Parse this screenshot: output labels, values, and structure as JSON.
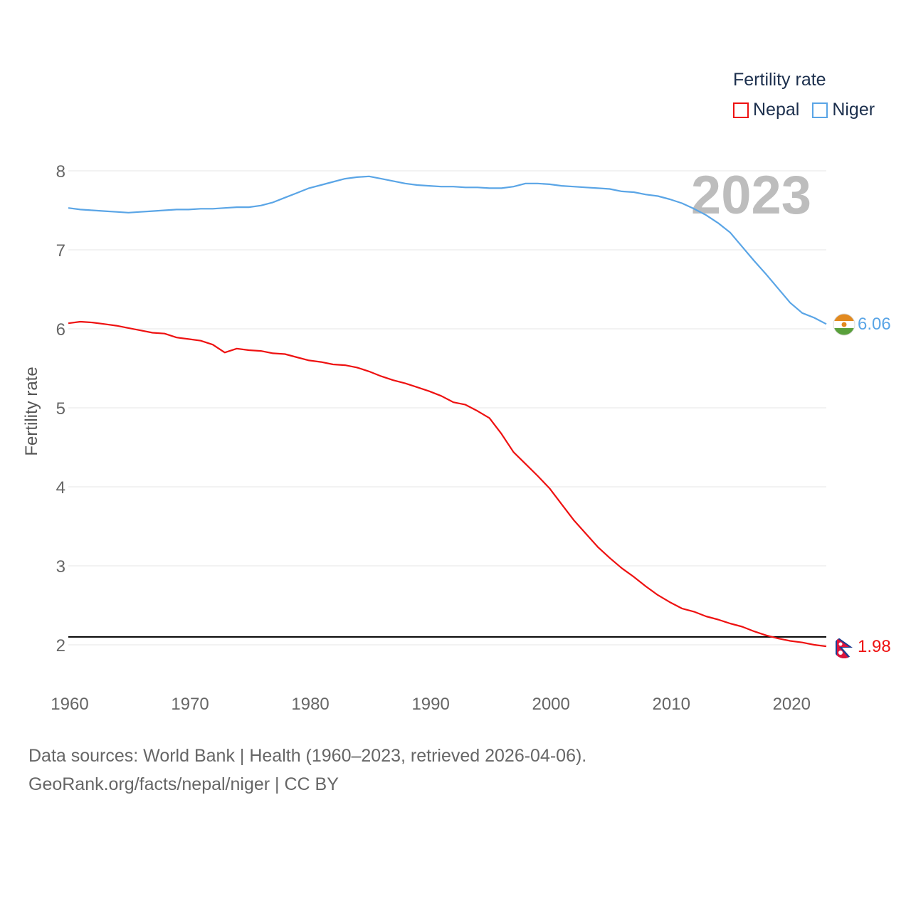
{
  "legend": {
    "title": "Fertility rate",
    "items": [
      {
        "name": "Nepal",
        "color": "#ee1111"
      },
      {
        "name": "Niger",
        "color": "#5aa5e6"
      }
    ]
  },
  "footer": {
    "line1": "Data sources: World Bank | Health (1960–2023, retrieved 2026-04-06).",
    "line2": "GeoRank.org/facts/nepal/niger | CC BY"
  },
  "chart_data": {
    "type": "line",
    "ylabel": "Fertility rate",
    "xlabel": "",
    "year_watermark": "2023",
    "xlim": [
      1960,
      2023
    ],
    "ylim": [
      1.5,
      8.5
    ],
    "xticks": [
      1960,
      1970,
      1980,
      1990,
      2000,
      2010,
      2020
    ],
    "yticks": [
      2,
      3,
      4,
      5,
      6,
      7,
      8
    ],
    "grid": true,
    "reference_line": {
      "y": 2.1,
      "color": "#000000"
    },
    "x": [
      1960,
      1961,
      1962,
      1963,
      1964,
      1965,
      1966,
      1967,
      1968,
      1969,
      1970,
      1971,
      1972,
      1973,
      1974,
      1975,
      1976,
      1977,
      1978,
      1979,
      1980,
      1981,
      1982,
      1983,
      1984,
      1985,
      1986,
      1987,
      1988,
      1989,
      1990,
      1991,
      1992,
      1993,
      1994,
      1995,
      1996,
      1997,
      1998,
      1999,
      2000,
      2001,
      2002,
      2003,
      2004,
      2005,
      2006,
      2007,
      2008,
      2009,
      2010,
      2011,
      2012,
      2013,
      2014,
      2015,
      2016,
      2017,
      2018,
      2019,
      2020,
      2021,
      2022,
      2023
    ],
    "series": [
      {
        "name": "Nepal",
        "color": "#ee1111",
        "end_label": "1.98",
        "values": [
          6.07,
          6.09,
          6.08,
          6.06,
          6.04,
          6.01,
          5.98,
          5.95,
          5.94,
          5.89,
          5.87,
          5.85,
          5.8,
          5.7,
          5.75,
          5.73,
          5.72,
          5.69,
          5.68,
          5.64,
          5.6,
          5.58,
          5.55,
          5.54,
          5.51,
          5.46,
          5.4,
          5.35,
          5.31,
          5.26,
          5.21,
          5.15,
          5.07,
          5.04,
          4.96,
          4.87,
          4.67,
          4.44,
          4.29,
          4.14,
          3.98,
          3.78,
          3.58,
          3.41,
          3.24,
          3.1,
          2.97,
          2.86,
          2.74,
          2.63,
          2.54,
          2.46,
          2.42,
          2.36,
          2.32,
          2.27,
          2.23,
          2.17,
          2.12,
          2.08,
          2.05,
          2.03,
          2.0,
          1.98
        ]
      },
      {
        "name": "Niger",
        "color": "#5aa5e6",
        "end_label": "6.06",
        "values": [
          7.53,
          7.51,
          7.5,
          7.49,
          7.48,
          7.47,
          7.48,
          7.49,
          7.5,
          7.51,
          7.51,
          7.52,
          7.52,
          7.53,
          7.54,
          7.54,
          7.56,
          7.6,
          7.66,
          7.72,
          7.78,
          7.82,
          7.86,
          7.9,
          7.92,
          7.93,
          7.9,
          7.87,
          7.84,
          7.82,
          7.81,
          7.8,
          7.8,
          7.79,
          7.79,
          7.78,
          7.78,
          7.8,
          7.84,
          7.84,
          7.83,
          7.81,
          7.8,
          7.79,
          7.78,
          7.77,
          7.74,
          7.73,
          7.7,
          7.68,
          7.64,
          7.59,
          7.52,
          7.44,
          7.34,
          7.22,
          7.04,
          6.86,
          6.69,
          6.51,
          6.33,
          6.2,
          6.14,
          6.06
        ]
      }
    ]
  }
}
